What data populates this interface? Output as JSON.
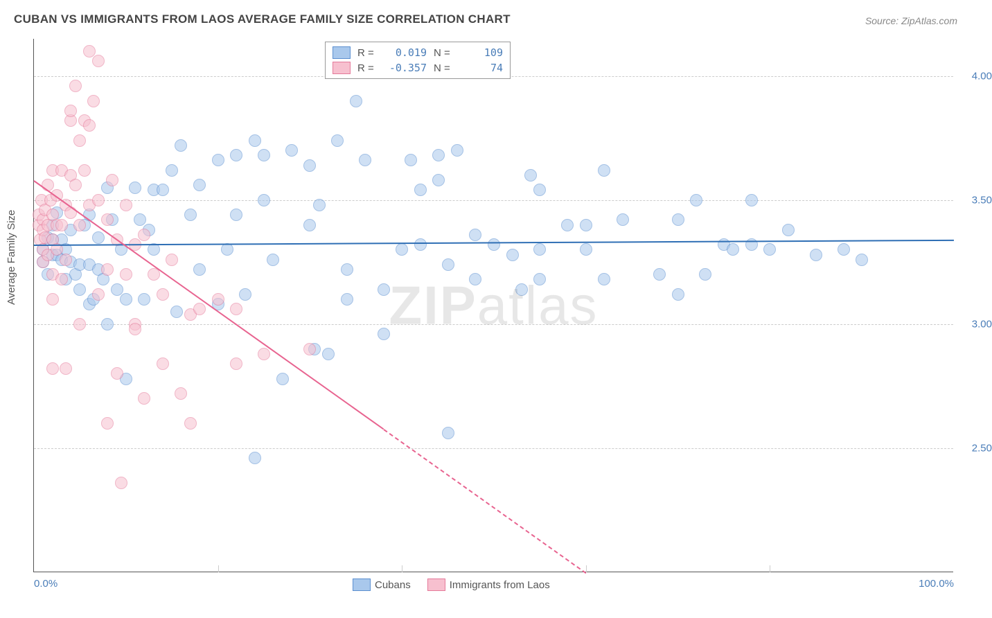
{
  "title": "CUBAN VS IMMIGRANTS FROM LAOS AVERAGE FAMILY SIZE CORRELATION CHART",
  "source": "Source: ZipAtlas.com",
  "ylabel": "Average Family Size",
  "watermark_bold": "ZIP",
  "watermark_rest": "atlas",
  "chart": {
    "type": "scatter",
    "background_color": "#ffffff",
    "grid_color": "#cccccc",
    "x_range": [
      0,
      100
    ],
    "y_range": [
      2.0,
      4.15
    ],
    "y_ticks": [
      2.5,
      3.0,
      3.5,
      4.0
    ],
    "x_tick_labels": [
      {
        "pos": 0,
        "label": "0.0%"
      },
      {
        "pos": 100,
        "label": "100.0%"
      }
    ],
    "x_minor_ticks": [
      20,
      40,
      60,
      80
    ],
    "point_radius": 9,
    "point_opacity": 0.55,
    "series": [
      {
        "name": "Cubans",
        "color_fill": "#a9c8ec",
        "color_stroke": "#5b8fd0",
        "trend_color": "#2f6fb5",
        "r": "0.019",
        "n": "109",
        "trend": {
          "x1": 0,
          "y1": 3.32,
          "x2": 100,
          "y2": 3.34,
          "dashed_from_x": null
        },
        "points": [
          [
            1,
            3.3
          ],
          [
            1,
            3.25
          ],
          [
            1.5,
            3.2
          ],
          [
            1.5,
            3.35
          ],
          [
            2,
            3.28
          ],
          [
            2,
            3.34
          ],
          [
            2,
            3.4
          ],
          [
            2.5,
            3.28
          ],
          [
            2.5,
            3.45
          ],
          [
            3,
            3.34
          ],
          [
            3,
            3.26
          ],
          [
            3.5,
            3.3
          ],
          [
            3.5,
            3.18
          ],
          [
            4,
            3.25
          ],
          [
            4,
            3.38
          ],
          [
            4.5,
            3.2
          ],
          [
            5,
            3.24
          ],
          [
            5,
            3.14
          ],
          [
            5.5,
            3.4
          ],
          [
            6,
            3.08
          ],
          [
            6,
            3.24
          ],
          [
            6,
            3.44
          ],
          [
            6.5,
            3.1
          ],
          [
            7,
            3.22
          ],
          [
            7,
            3.35
          ],
          [
            7.5,
            3.18
          ],
          [
            8,
            3.55
          ],
          [
            8,
            3.0
          ],
          [
            8.5,
            3.42
          ],
          [
            9,
            3.14
          ],
          [
            9.5,
            3.3
          ],
          [
            10,
            3.1
          ],
          [
            10,
            2.78
          ],
          [
            11,
            3.55
          ],
          [
            11.5,
            3.42
          ],
          [
            12,
            3.1
          ],
          [
            12.5,
            3.38
          ],
          [
            13,
            3.54
          ],
          [
            13,
            3.3
          ],
          [
            14,
            3.54
          ],
          [
            15,
            3.62
          ],
          [
            15.5,
            3.05
          ],
          [
            16,
            3.72
          ],
          [
            17,
            3.44
          ],
          [
            18,
            3.56
          ],
          [
            18,
            3.22
          ],
          [
            20,
            3.08
          ],
          [
            20,
            3.66
          ],
          [
            21,
            3.3
          ],
          [
            22,
            3.68
          ],
          [
            22,
            3.44
          ],
          [
            23,
            3.12
          ],
          [
            24,
            3.74
          ],
          [
            24,
            2.46
          ],
          [
            25,
            3.5
          ],
          [
            25,
            3.68
          ],
          [
            26,
            3.26
          ],
          [
            27,
            2.78
          ],
          [
            28,
            3.7
          ],
          [
            30,
            3.4
          ],
          [
            30,
            3.64
          ],
          [
            30.5,
            2.9
          ],
          [
            31,
            3.48
          ],
          [
            32,
            2.88
          ],
          [
            33,
            3.74
          ],
          [
            34,
            3.1
          ],
          [
            34,
            3.22
          ],
          [
            35,
            3.9
          ],
          [
            36,
            3.66
          ],
          [
            38,
            3.14
          ],
          [
            38,
            2.96
          ],
          [
            40,
            3.3
          ],
          [
            41,
            3.66
          ],
          [
            42,
            3.54
          ],
          [
            42,
            3.32
          ],
          [
            44,
            3.68
          ],
          [
            44,
            3.58
          ],
          [
            45,
            3.24
          ],
          [
            45,
            2.56
          ],
          [
            46,
            3.7
          ],
          [
            48,
            3.36
          ],
          [
            48,
            3.18
          ],
          [
            50,
            3.32
          ],
          [
            52,
            3.28
          ],
          [
            53,
            3.14
          ],
          [
            54,
            3.6
          ],
          [
            55,
            3.54
          ],
          [
            55,
            3.18
          ],
          [
            55,
            3.3
          ],
          [
            58,
            3.4
          ],
          [
            60,
            3.3
          ],
          [
            60,
            3.4
          ],
          [
            62,
            3.18
          ],
          [
            62,
            3.62
          ],
          [
            64,
            3.42
          ],
          [
            68,
            3.2
          ],
          [
            70,
            3.42
          ],
          [
            70,
            3.12
          ],
          [
            72,
            3.5
          ],
          [
            73,
            3.2
          ],
          [
            75,
            3.32
          ],
          [
            76,
            3.3
          ],
          [
            78,
            3.32
          ],
          [
            78,
            3.5
          ],
          [
            80,
            3.3
          ],
          [
            82,
            3.38
          ],
          [
            85,
            3.28
          ],
          [
            88,
            3.3
          ],
          [
            90,
            3.26
          ]
        ]
      },
      {
        "name": "Immigrants from Laos",
        "color_fill": "#f7c0cf",
        "color_stroke": "#e57a9a",
        "trend_color": "#e86490",
        "r": "-0.357",
        "n": "74",
        "trend": {
          "x1": 0,
          "y1": 3.58,
          "x2": 60,
          "y2": 2.0,
          "dashed_from_x": 38
        },
        "points": [
          [
            0.5,
            3.4
          ],
          [
            0.5,
            3.44
          ],
          [
            0.7,
            3.34
          ],
          [
            0.8,
            3.5
          ],
          [
            1,
            3.42
          ],
          [
            1,
            3.38
          ],
          [
            1,
            3.3
          ],
          [
            1,
            3.25
          ],
          [
            1.2,
            3.46
          ],
          [
            1.2,
            3.35
          ],
          [
            1.5,
            3.4
          ],
          [
            1.5,
            3.28
          ],
          [
            1.5,
            3.56
          ],
          [
            1.8,
            3.5
          ],
          [
            2,
            3.62
          ],
          [
            2,
            3.44
          ],
          [
            2,
            3.34
          ],
          [
            2,
            3.2
          ],
          [
            2,
            3.1
          ],
          [
            2,
            2.82
          ],
          [
            2.5,
            3.4
          ],
          [
            2.5,
            3.3
          ],
          [
            2.5,
            3.52
          ],
          [
            3,
            3.4
          ],
          [
            3,
            3.62
          ],
          [
            3,
            3.18
          ],
          [
            3.5,
            3.48
          ],
          [
            3.5,
            3.26
          ],
          [
            3.5,
            2.82
          ],
          [
            4,
            3.45
          ],
          [
            4,
            3.6
          ],
          [
            4,
            3.82
          ],
          [
            4,
            3.86
          ],
          [
            4.5,
            3.56
          ],
          [
            4.5,
            3.96
          ],
          [
            5,
            3.4
          ],
          [
            5,
            3.0
          ],
          [
            5,
            3.74
          ],
          [
            5.5,
            3.62
          ],
          [
            5.5,
            3.82
          ],
          [
            6,
            3.48
          ],
          [
            6,
            3.8
          ],
          [
            6,
            4.1
          ],
          [
            6.5,
            3.9
          ],
          [
            7,
            3.5
          ],
          [
            7,
            3.12
          ],
          [
            7,
            4.06
          ],
          [
            8,
            3.42
          ],
          [
            8,
            3.22
          ],
          [
            8,
            2.6
          ],
          [
            8.5,
            3.58
          ],
          [
            9,
            3.34
          ],
          [
            9,
            2.8
          ],
          [
            9.5,
            2.36
          ],
          [
            10,
            3.2
          ],
          [
            10,
            3.48
          ],
          [
            11,
            3.32
          ],
          [
            11,
            3.0
          ],
          [
            11,
            2.98
          ],
          [
            12,
            3.36
          ],
          [
            12,
            2.7
          ],
          [
            13,
            3.2
          ],
          [
            14,
            2.84
          ],
          [
            14,
            3.12
          ],
          [
            15,
            3.26
          ],
          [
            16,
            2.72
          ],
          [
            17,
            2.6
          ],
          [
            17,
            3.04
          ],
          [
            18,
            3.06
          ],
          [
            20,
            3.1
          ],
          [
            22,
            2.84
          ],
          [
            22,
            3.06
          ],
          [
            25,
            2.88
          ],
          [
            30,
            2.9
          ]
        ]
      }
    ]
  }
}
